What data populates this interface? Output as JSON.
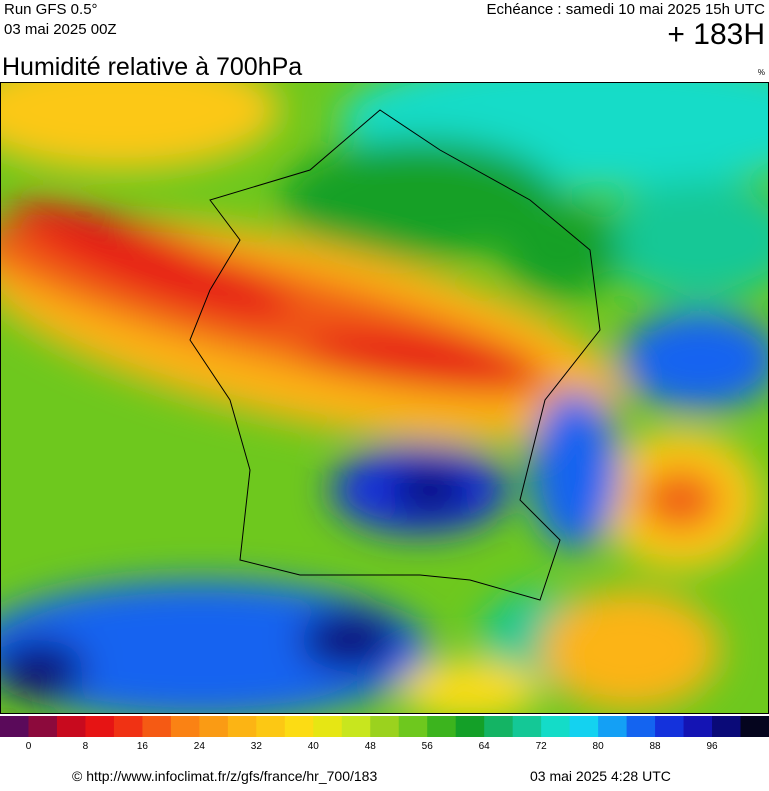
{
  "header": {
    "run": "Run GFS 0.5°",
    "run_date": "03 mai 2025 00Z",
    "forecast": "Echéance : samedi 10 mai 2025 15h UTC",
    "lead": "+ 183H"
  },
  "title": "Humidité relative à 700hPa",
  "unit": "%",
  "colorbar": {
    "ticks": [
      0,
      8,
      16,
      24,
      32,
      40,
      48,
      56,
      64,
      72,
      80,
      88,
      96
    ],
    "colors": [
      "#5a0a5a",
      "#8c0a3c",
      "#c80a1e",
      "#e61414",
      "#f03214",
      "#f55a14",
      "#fa8214",
      "#fa9b14",
      "#fcb414",
      "#fcc814",
      "#fcdc14",
      "#e6e614",
      "#c8e61e",
      "#9bd21e",
      "#6ec81e",
      "#3cb41e",
      "#14a028",
      "#14b464",
      "#14c896",
      "#14dcc8",
      "#14d2f0",
      "#14a0f5",
      "#1464f0",
      "#1432dc",
      "#1414b4",
      "#0a0a78",
      "#05051e"
    ]
  },
  "footer": {
    "source": "© http://www.infoclimat.fr/z/gfs/france/hr_700/183",
    "generated": "03 mai 2025  4:28 UTC"
  }
}
